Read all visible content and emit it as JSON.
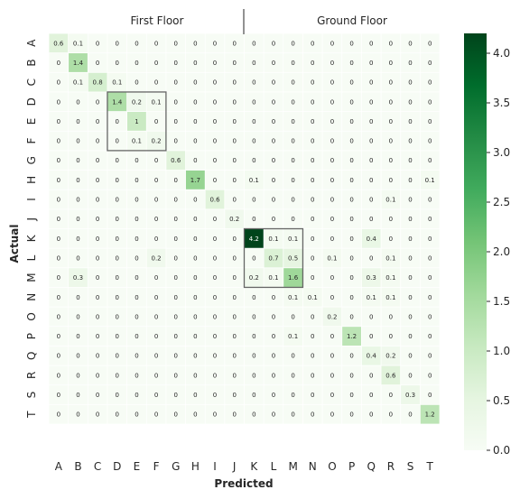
{
  "chart_data": {
    "type": "heatmap",
    "xlabel": "Predicted",
    "ylabel": "Actual",
    "labels": [
      "A",
      "B",
      "C",
      "D",
      "E",
      "F",
      "G",
      "H",
      "I",
      "J",
      "K",
      "L",
      "M",
      "N",
      "O",
      "P",
      "Q",
      "R",
      "S",
      "T"
    ],
    "groups": [
      "First Floor",
      "Ground Floor"
    ],
    "matrix": [
      [
        0.6,
        0.1,
        0,
        0,
        0,
        0,
        0,
        0,
        0,
        0,
        0,
        0,
        0,
        0,
        0,
        0,
        0,
        0,
        0,
        0
      ],
      [
        0,
        1.4,
        0,
        0,
        0,
        0,
        0,
        0,
        0,
        0,
        0,
        0,
        0,
        0,
        0,
        0,
        0,
        0,
        0,
        0
      ],
      [
        0,
        0.1,
        0.8,
        0.1,
        0,
        0,
        0,
        0,
        0,
        0,
        0,
        0,
        0,
        0,
        0,
        0,
        0,
        0,
        0,
        0
      ],
      [
        0,
        0,
        0,
        1.4,
        0.2,
        0.1,
        0,
        0,
        0,
        0,
        0,
        0,
        0,
        0,
        0,
        0,
        0,
        0,
        0,
        0
      ],
      [
        0,
        0,
        0,
        0,
        1,
        0,
        0,
        0,
        0,
        0,
        0,
        0,
        0,
        0,
        0,
        0,
        0,
        0,
        0,
        0
      ],
      [
        0,
        0,
        0,
        0,
        0.1,
        0.2,
        0,
        0,
        0,
        0,
        0,
        0,
        0,
        0,
        0,
        0,
        0,
        0,
        0,
        0
      ],
      [
        0,
        0,
        0,
        0,
        0,
        0,
        0.6,
        0,
        0,
        0,
        0,
        0,
        0,
        0,
        0,
        0,
        0,
        0,
        0,
        0
      ],
      [
        0,
        0,
        0,
        0,
        0,
        0,
        0,
        1.7,
        0,
        0,
        0.1,
        0,
        0,
        0,
        0,
        0,
        0,
        0,
        0,
        0.1
      ],
      [
        0,
        0,
        0,
        0,
        0,
        0,
        0,
        0,
        0.6,
        0,
        0,
        0,
        0,
        0,
        0,
        0,
        0,
        0.1,
        0,
        0
      ],
      [
        0,
        0,
        0,
        0,
        0,
        0,
        0,
        0,
        0,
        0.2,
        0,
        0,
        0,
        0,
        0,
        0,
        0,
        0,
        0,
        0
      ],
      [
        0,
        0,
        0,
        0,
        0,
        0,
        0,
        0,
        0,
        0,
        4.2,
        0.1,
        0.1,
        0,
        0,
        0,
        0.4,
        0,
        0,
        0
      ],
      [
        0,
        0,
        0,
        0,
        0,
        0.2,
        0,
        0,
        0,
        0,
        0,
        0.7,
        0.5,
        0,
        0.1,
        0,
        0,
        0.1,
        0,
        0
      ],
      [
        0,
        0.3,
        0,
        0,
        0,
        0,
        0,
        0,
        0,
        0,
        0.2,
        0.1,
        1.6,
        0,
        0,
        0,
        0.3,
        0.1,
        0,
        0
      ],
      [
        0,
        0,
        0,
        0,
        0,
        0,
        0,
        0,
        0,
        0,
        0,
        0,
        0.1,
        0.1,
        0,
        0,
        0.1,
        0.1,
        0,
        0
      ],
      [
        0,
        0,
        0,
        0,
        0,
        0,
        0,
        0,
        0,
        0,
        0,
        0,
        0,
        0,
        0.2,
        0,
        0,
        0,
        0,
        0
      ],
      [
        0,
        0,
        0,
        0,
        0,
        0,
        0,
        0,
        0,
        0,
        0,
        0,
        0.1,
        0,
        0,
        1.2,
        0,
        0,
        0,
        0
      ],
      [
        0,
        0,
        0,
        0,
        0,
        0,
        0,
        0,
        0,
        0,
        0,
        0,
        0,
        0,
        0,
        0,
        0.4,
        0.2,
        0,
        0
      ],
      [
        0,
        0,
        0,
        0,
        0,
        0,
        0,
        0,
        0,
        0,
        0,
        0,
        0,
        0,
        0,
        0,
        0,
        0.6,
        0,
        0
      ],
      [
        0,
        0,
        0,
        0,
        0,
        0,
        0,
        0,
        0,
        0,
        0,
        0,
        0,
        0,
        0,
        0,
        0,
        0,
        0.3,
        0
      ],
      [
        0,
        0,
        0,
        0,
        0,
        0,
        0,
        0,
        0,
        0,
        0,
        0,
        0,
        0,
        0,
        0,
        0,
        0,
        0,
        1.2
      ]
    ],
    "highlight_boxes": [
      {
        "rows": [
          "D",
          "F"
        ],
        "cols": [
          "D",
          "F"
        ]
      },
      {
        "rows": [
          "K",
          "M"
        ],
        "cols": [
          "K",
          "M"
        ]
      }
    ],
    "colorbar": {
      "range": [
        0,
        4.2
      ],
      "ticks": [
        0.0,
        0.5,
        1.0,
        1.5,
        2.0,
        2.5,
        3.0,
        3.5,
        4.0
      ],
      "tick_labels": [
        "0.0",
        "0.5",
        "1.0",
        "1.5",
        "2.0",
        "2.5",
        "3.0",
        "3.5",
        "4.0"
      ],
      "colormap": "Greens"
    }
  }
}
